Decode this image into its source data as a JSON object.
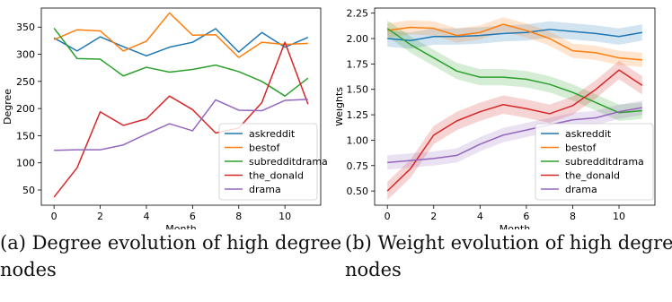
{
  "captions": {
    "a": "(a) Degree evolution of high degree nodes",
    "b_line1": "(b) Weight evolution of high degree",
    "b_line2": "nodes"
  },
  "chart_data": [
    {
      "type": "line",
      "xlabel": "Month",
      "ylabel": "Degree",
      "xlim": [
        -0.55,
        11.55
      ],
      "ylim": [
        22,
        385
      ],
      "xticks": [
        0,
        2,
        4,
        6,
        8,
        10
      ],
      "yticks": [
        50,
        100,
        150,
        200,
        250,
        300,
        350
      ],
      "legend_position": "lower-right",
      "grid": false,
      "x": [
        0,
        1,
        2,
        3,
        4,
        5,
        6,
        7,
        8,
        9,
        10,
        11
      ],
      "series": [
        {
          "name": "askreddit",
          "color": "#1f77b4",
          "values": [
            330,
            306,
            332,
            314,
            297,
            313,
            322,
            347,
            304,
            340,
            313,
            331
          ]
        },
        {
          "name": "bestof",
          "color": "#ff7f0e",
          "values": [
            327,
            345,
            343,
            306,
            324,
            376,
            335,
            336,
            294,
            322,
            318,
            320
          ]
        },
        {
          "name": "subredditdrama",
          "color": "#2ca02c",
          "values": [
            348,
            292,
            291,
            260,
            276,
            267,
            272,
            280,
            268,
            250,
            223,
            256
          ]
        },
        {
          "name": "the_donald",
          "color": "#d62728",
          "values": [
            37,
            91,
            194,
            169,
            181,
            223,
            198,
            155,
            164,
            211,
            322,
            208
          ]
        },
        {
          "name": "drama",
          "color": "#9467bd",
          "values": [
            123,
            124,
            124,
            133,
            153,
            172,
            159,
            216,
            197,
            196,
            215,
            217
          ]
        }
      ]
    },
    {
      "type": "line",
      "xlabel": "Month",
      "ylabel": "Weights",
      "xlim": [
        -0.55,
        11.55
      ],
      "ylim": [
        0.36,
        2.3
      ],
      "xticks": [
        0,
        2,
        4,
        6,
        8,
        10
      ],
      "yticks": [
        "0.50",
        "0.75",
        "1.00",
        "1.25",
        "1.50",
        "1.75",
        "2.00",
        "2.25"
      ],
      "legend_position": "lower-right",
      "grid": false,
      "x": [
        0,
        1,
        2,
        3,
        4,
        5,
        6,
        7,
        8,
        9,
        10,
        11
      ],
      "series": [
        {
          "name": "askreddit",
          "color": "#1f77b4",
          "values": [
            2.0,
            1.98,
            2.02,
            2.02,
            2.03,
            2.05,
            2.06,
            2.09,
            2.07,
            2.05,
            2.02,
            2.06
          ],
          "band": 0.08
        },
        {
          "name": "bestof",
          "color": "#ff7f0e",
          "values": [
            2.08,
            2.11,
            2.1,
            2.03,
            2.06,
            2.14,
            2.08,
            2.0,
            1.88,
            1.86,
            1.81,
            1.79
          ],
          "band": 0.07
        },
        {
          "name": "subredditdrama",
          "color": "#2ca02c",
          "values": [
            2.1,
            1.94,
            1.81,
            1.68,
            1.62,
            1.62,
            1.6,
            1.55,
            1.47,
            1.37,
            1.27,
            1.29
          ],
          "band": 0.08
        },
        {
          "name": "the_donald",
          "color": "#d62728",
          "values": [
            0.5,
            0.72,
            1.05,
            1.19,
            1.28,
            1.35,
            1.31,
            1.26,
            1.34,
            1.5,
            1.69,
            1.54
          ],
          "band": 0.09
        },
        {
          "name": "drama",
          "color": "#9467bd",
          "values": [
            0.78,
            0.8,
            0.82,
            0.85,
            0.96,
            1.05,
            1.1,
            1.15,
            1.2,
            1.22,
            1.28,
            1.32
          ],
          "band": 0.07
        }
      ]
    }
  ]
}
